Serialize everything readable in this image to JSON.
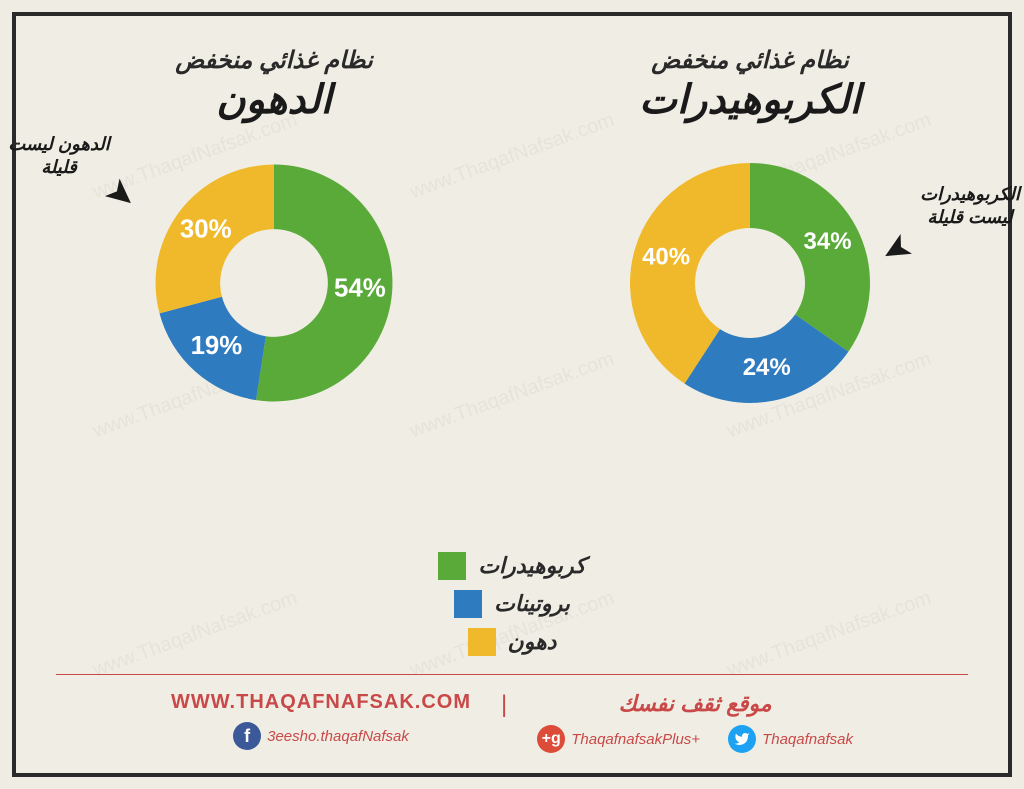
{
  "background_color": "#f0eee4",
  "border_color": "#2a2a2a",
  "watermark_text": "www.ThaqafNafsak.com",
  "colors": {
    "carbs": "#5aaa3a",
    "protein": "#2e7bbf",
    "fat": "#f0b92b",
    "text": "#1a1a1a",
    "accent": "#c94848"
  },
  "legend": [
    {
      "label": "كربوهيدرات",
      "color_key": "carbs"
    },
    {
      "label": "بروتينات",
      "color_key": "protein"
    },
    {
      "label": "دهون",
      "color_key": "fat"
    }
  ],
  "charts": {
    "low_carb": {
      "subtitle": "نظام غذائي منخفض",
      "title": "الكربوهيدرات",
      "callout": "الكربوهيدرات\nليست قليلة",
      "type": "donut",
      "inner_radius": 55,
      "outer_radius": 120,
      "slices": [
        {
          "key": "carbs",
          "value": 34,
          "label": "34%"
        },
        {
          "key": "protein",
          "value": 24,
          "label": "24%"
        },
        {
          "key": "fat",
          "value": 40,
          "label": "40%"
        }
      ]
    },
    "low_fat": {
      "subtitle": "نظام غذائي منخفض",
      "title": "الدهون",
      "callout": "الدهون\nليست قليلة",
      "type": "donut",
      "inner_radius": 50,
      "outer_radius": 110,
      "slices": [
        {
          "key": "carbs",
          "value": 54,
          "label": "54%"
        },
        {
          "key": "protein",
          "value": 19,
          "label": "19%"
        },
        {
          "key": "fat",
          "value": 30,
          "label": "30%"
        }
      ]
    }
  },
  "footer": {
    "url": "WWW.THAQAFNAFSAK.COM",
    "site_name": "موقع ثقف نفسك",
    "social": {
      "facebook": "3eesho.thaqafNafsak",
      "gplus": "+ThaqafnafsakPlus",
      "twitter": "Thaqafnafsak"
    }
  }
}
